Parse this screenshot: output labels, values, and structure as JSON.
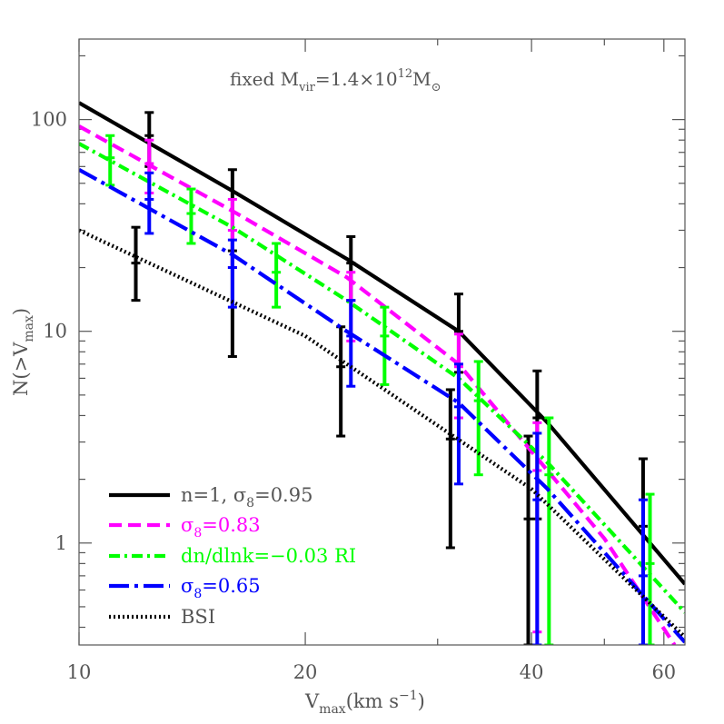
{
  "chart_data": {
    "type": "line",
    "annotation": {
      "base": "fixed M",
      "sub1": "vir",
      "mid": "=1.4×10",
      "sup": "12",
      "tail": "M",
      "sub2": "⊙"
    },
    "xlabel": {
      "main": "V",
      "sub": "max",
      "tail": "(km s",
      "sup": "−1",
      "close": ")"
    },
    "ylabel": {
      "main": "N(>V",
      "sub": "max",
      "close": ")"
    },
    "xscale": "log",
    "yscale": "log",
    "xlim": [
      10,
      64
    ],
    "ylim": [
      0.33,
      240
    ],
    "xticks": [
      {
        "value": 10,
        "label": "10"
      },
      {
        "value": 20,
        "label": "20"
      },
      {
        "value": 40,
        "label": "40"
      },
      {
        "value": 60,
        "label": "60"
      }
    ],
    "yticks": [
      {
        "value": 1,
        "label": "1"
      },
      {
        "value": 10,
        "label": "10"
      },
      {
        "value": 100,
        "label": "100"
      }
    ],
    "legend_position": "bottom-left",
    "series": [
      {
        "name": "n=1, σ",
        "name_sub": "8",
        "name_tail": "=0.95",
        "color": "#000000",
        "dash": "solid",
        "line": [
          [
            10,
            120
          ],
          [
            16,
            46
          ],
          [
            22.7,
            22
          ],
          [
            32,
            10
          ],
          [
            42,
            3.7
          ],
          [
            64,
            0.64
          ]
        ],
        "errorbars": [
          {
            "x": 11.9,
            "y": 21,
            "lo": 14,
            "hi": 31
          },
          {
            "x": 12.4,
            "y": 84,
            "lo": 60,
            "hi": 108
          },
          {
            "x": 16,
            "y": 24,
            "lo": 7.6,
            "hi": 58
          },
          {
            "x": 22.3,
            "y": 6.8,
            "lo": 3.2,
            "hi": 10.5
          },
          {
            "x": 23,
            "y": 21,
            "lo": 14,
            "hi": 28
          },
          {
            "x": 31.2,
            "y": 3.1,
            "lo": 0.95,
            "hi": 5.3
          },
          {
            "x": 32,
            "y": 10,
            "lo": 6.4,
            "hi": 15
          },
          {
            "x": 39.6,
            "y": 1.3,
            "lo": 0.33,
            "hi": 3.2
          },
          {
            "x": 40.7,
            "y": 3.9,
            "lo": 1.3,
            "hi": 6.5
          },
          {
            "x": 56.3,
            "y": 1.2,
            "lo": 0.33,
            "hi": 2.5
          }
        ]
      },
      {
        "name": "σ",
        "name_sub": "8",
        "name_tail": "=0.83",
        "color": "#ff00ff",
        "dash": "dashed",
        "line": [
          [
            10,
            93
          ],
          [
            16,
            37
          ],
          [
            22.7,
            18
          ],
          [
            32,
            7
          ],
          [
            42,
            2.2
          ],
          [
            50,
            1.05
          ],
          [
            62,
            0.33
          ]
        ],
        "errorbars": [
          {
            "x": 12.4,
            "y": 62,
            "lo": 45,
            "hi": 80
          },
          {
            "x": 16,
            "y": 30,
            "lo": 20,
            "hi": 42
          },
          {
            "x": 23,
            "y": 14,
            "lo": 9,
            "hi": 19
          },
          {
            "x": 32,
            "y": 6.8,
            "lo": 3.9,
            "hi": 9.7
          },
          {
            "x": 40.7,
            "y": 2.2,
            "lo": 0.38,
            "hi": 3.7
          }
        ]
      },
      {
        "name": "dn/dlnk=−0.03 RI",
        "name_sub": "",
        "name_tail": "",
        "color": "#00ff00",
        "dash": "dashdot",
        "line": [
          [
            10,
            77
          ],
          [
            16,
            31
          ],
          [
            22.7,
            14
          ],
          [
            32,
            6
          ],
          [
            42,
            2.4
          ],
          [
            64,
            0.47
          ]
        ],
        "errorbars": [
          {
            "x": 11,
            "y": 66,
            "lo": 49,
            "hi": 84
          },
          {
            "x": 14.1,
            "y": 36,
            "lo": 26,
            "hi": 47
          },
          {
            "x": 18.3,
            "y": 19,
            "lo": 13,
            "hi": 26
          },
          {
            "x": 25.5,
            "y": 9.5,
            "lo": 5.6,
            "hi": 13
          },
          {
            "x": 34,
            "y": 4.7,
            "lo": 2.1,
            "hi": 7.2
          },
          {
            "x": 42.2,
            "y": 2.1,
            "lo": 0.33,
            "hi": 3.9
          },
          {
            "x": 57.5,
            "y": 0.8,
            "lo": 0.33,
            "hi": 1.7
          }
        ]
      },
      {
        "name": "σ",
        "name_sub": "8",
        "name_tail": "=0.65",
        "color": "#0000ff",
        "dash": "longdashdot",
        "line": [
          [
            10,
            58
          ],
          [
            16,
            23
          ],
          [
            22.7,
            10
          ],
          [
            32,
            4.6
          ],
          [
            42,
            1.8
          ],
          [
            64,
            0.34
          ]
        ],
        "errorbars": [
          {
            "x": 12.4,
            "y": 42,
            "lo": 29,
            "hi": 56
          },
          {
            "x": 16,
            "y": 20,
            "lo": 13,
            "hi": 27
          },
          {
            "x": 23,
            "y": 9.5,
            "lo": 5.5,
            "hi": 14
          },
          {
            "x": 32,
            "y": 4.4,
            "lo": 1.9,
            "hi": 7
          },
          {
            "x": 40.7,
            "y": 1.6,
            "lo": 0.33,
            "hi": 3.3
          },
          {
            "x": 56.3,
            "y": 0.7,
            "lo": 0.33,
            "hi": 1.6
          }
        ]
      },
      {
        "name": "BSI",
        "name_sub": "",
        "name_tail": "",
        "color": "#000000",
        "dash": "dotted",
        "line": [
          [
            10,
            30
          ],
          [
            20,
            9.5
          ],
          [
            40,
            1.8
          ],
          [
            64,
            0.36
          ]
        ],
        "errorbars": []
      }
    ]
  }
}
